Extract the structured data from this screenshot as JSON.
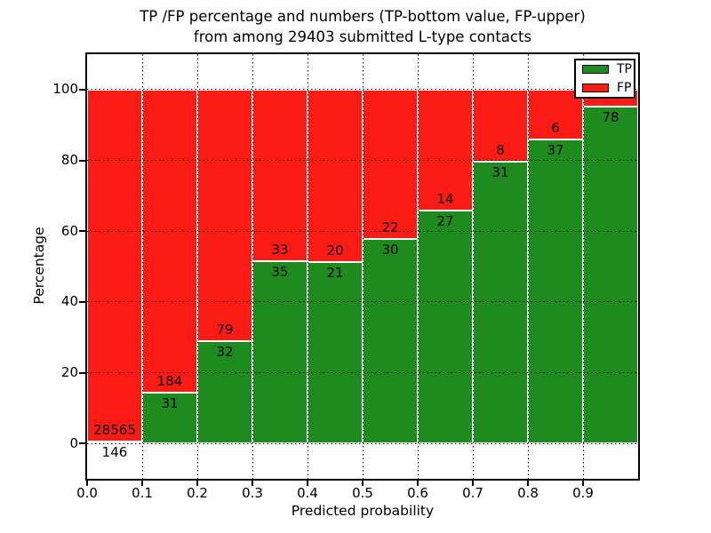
{
  "header": {
    "title_line1": "TP /FP percentage and numbers (TP-bottom value, FP-upper)",
    "title_line2": "from among 29403 submitted L-type contacts"
  },
  "axes": {
    "xlabel": "Predicted probability",
    "ylabel": "Percentage"
  },
  "legend": {
    "position": "upper right",
    "items": [
      {
        "label": "TP",
        "color": "#1e8b1e"
      },
      {
        "label": "FP",
        "color": "#fb1b15"
      }
    ]
  },
  "colors": {
    "tp_green": "#1e8b1e",
    "fp_red": "#fb1b15",
    "grid": "#000000",
    "background": "#ffffff",
    "text": "#000000"
  },
  "chart_data": {
    "type": "bar",
    "subtype": "stacked-percentage-histogram",
    "title": "TP /FP percentage and numbers (TP-bottom value, FP-upper) from among 29403 submitted L-type contacts",
    "xlabel": "Predicted probability",
    "ylabel": "Percentage",
    "total_submitted_contacts": 29403,
    "grid": true,
    "legend_position": "upper right",
    "xlim": [
      0.0,
      1.0
    ],
    "ylim": [
      -10,
      110
    ],
    "bin_width": 0.1,
    "bin_starts": [
      0.0,
      0.1,
      0.2,
      0.3,
      0.4,
      0.5,
      0.6,
      0.7,
      0.8,
      0.9
    ],
    "x_tick_labels": [
      "0.0",
      "0.1",
      "0.2",
      "0.3",
      "0.4",
      "0.5",
      "0.6",
      "0.7",
      "0.8",
      "0.9"
    ],
    "y_tick_values": [
      0,
      20,
      40,
      60,
      80,
      100
    ],
    "series": [
      {
        "name": "TP",
        "color": "#1e8b1e",
        "counts": [
          146,
          31,
          32,
          35,
          21,
          30,
          27,
          31,
          37,
          78
        ]
      },
      {
        "name": "FP",
        "color": "#fb1b15",
        "counts": [
          28565,
          184,
          79,
          33,
          20,
          22,
          14,
          8,
          6,
          null
        ]
      }
    ],
    "tp_percent_heights": [
      0.5,
      14.4,
      28.8,
      51.5,
      51.2,
      57.7,
      65.9,
      79.5,
      86.0,
      95.2
    ]
  }
}
